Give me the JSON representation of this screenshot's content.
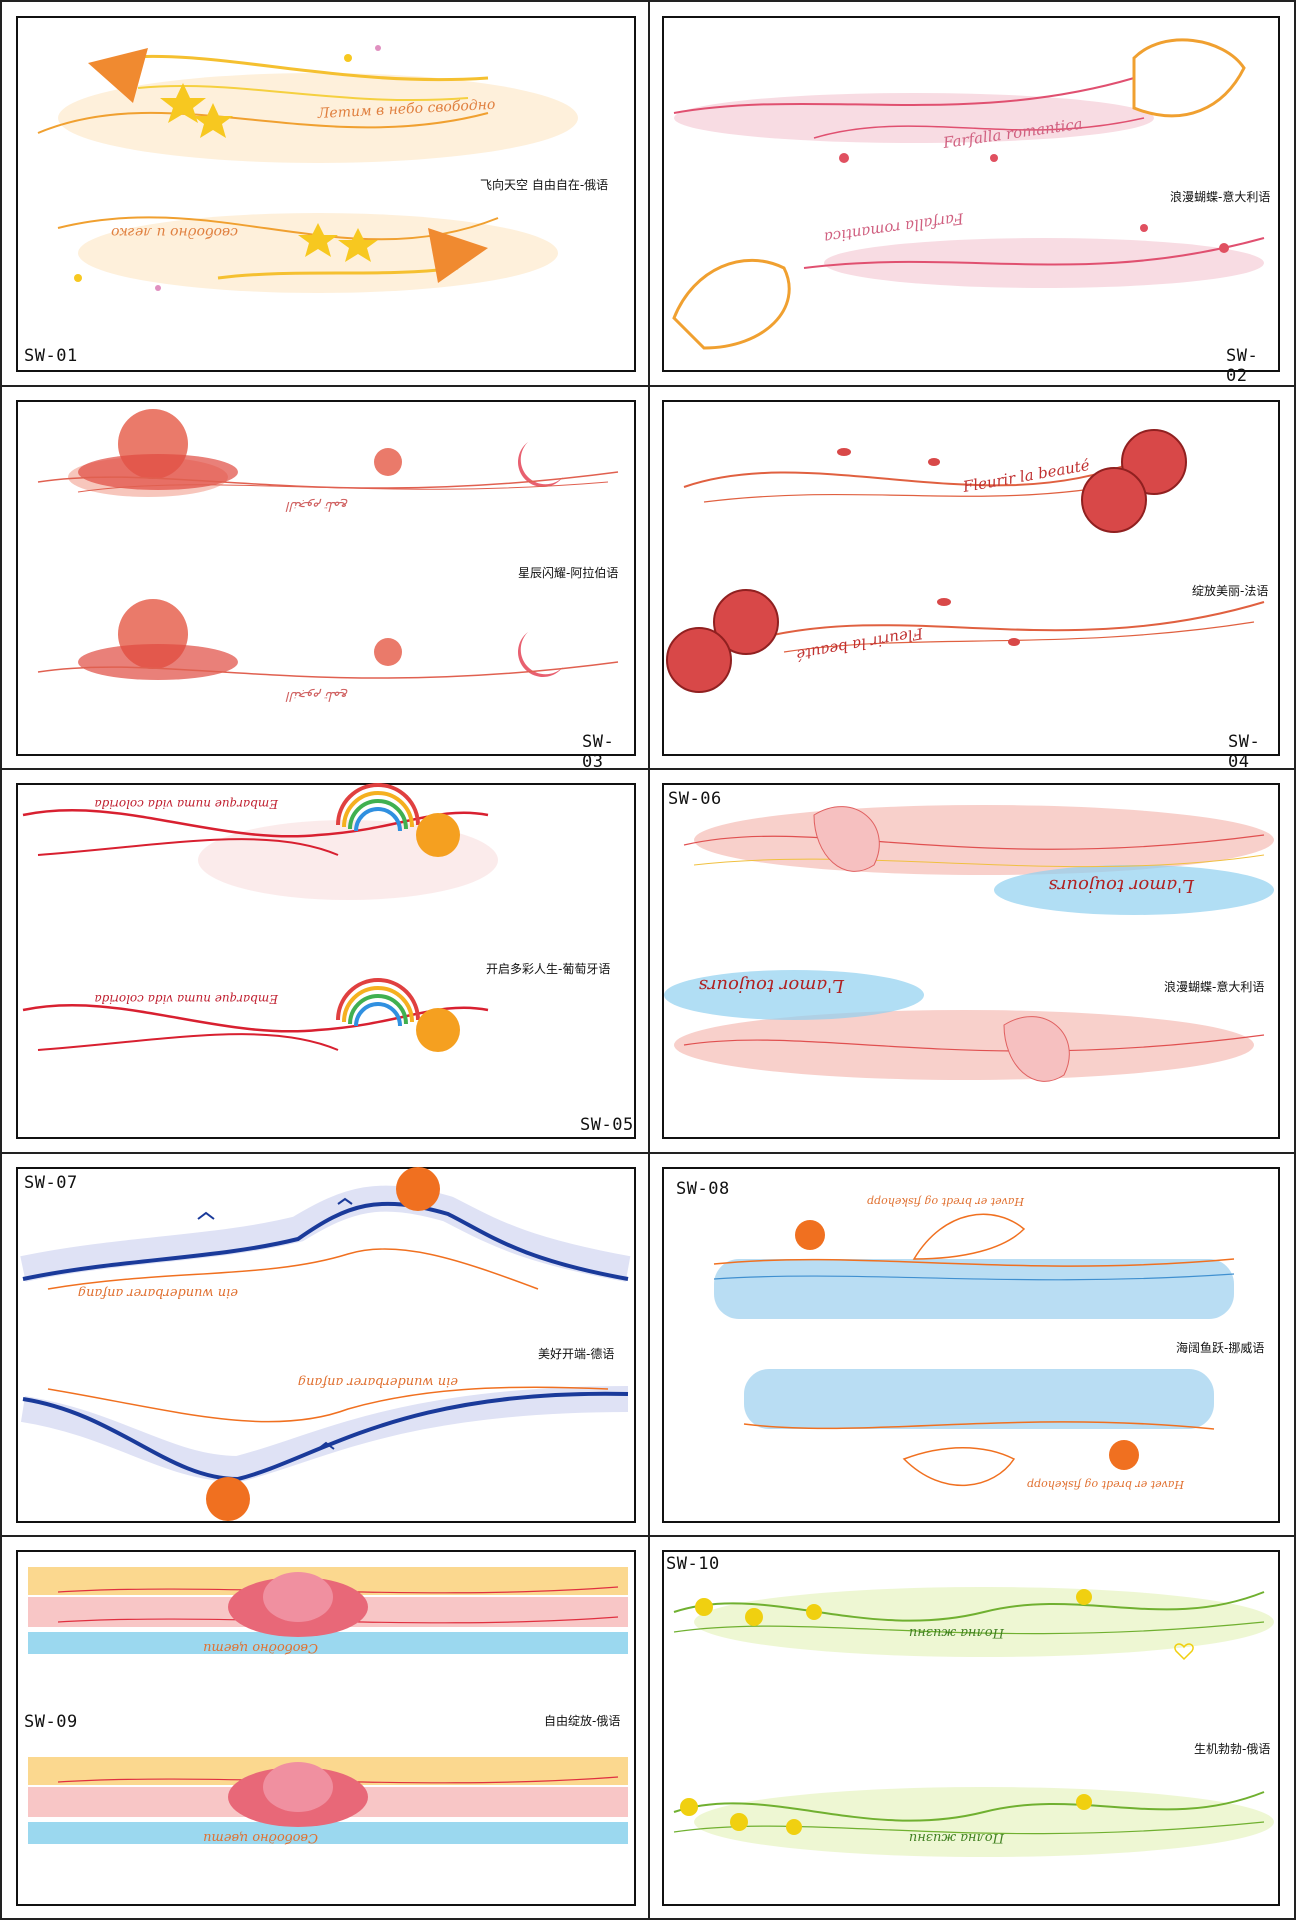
{
  "panels": [
    {
      "code": "SW-01",
      "caption": "飞向天空 自由自在-俄语",
      "script_top": "Летим в небо свободно",
      "script_bottom": "свободно и легко"
    },
    {
      "code": "SW-02",
      "caption": "浪漫蝴蝶-意大利语",
      "script_top": "Farfalla romantica",
      "script_bottom": "Farfalla romantica"
    },
    {
      "code": "SW-03",
      "caption": "星辰闪耀-阿拉伯语",
      "script_top": "النجوم تلمع",
      "script_bottom": "النجوم تلمع"
    },
    {
      "code": "SW-04",
      "caption": "绽放美丽-法语",
      "script_top": "Fleurir la beauté",
      "script_bottom": "Fleurir la beauté"
    },
    {
      "code": "SW-05",
      "caption": "开启多彩人生-葡萄牙语",
      "script_top": "Embarque numa vida colorida",
      "script_bottom": "Embarque numa vida colorida"
    },
    {
      "code": "SW-06",
      "caption": "浪漫蝴蝶-意大利语",
      "script_top": "L'amor toujours",
      "script_bottom": "L'amor toujours"
    },
    {
      "code": "SW-07",
      "caption": "美好开端-德语",
      "script_top": "ein wunderbarer anfang",
      "script_bottom": "ein wunderbarer anfang"
    },
    {
      "code": "SW-08",
      "caption": "海阔鱼跃-挪威语",
      "script_top": "Havet er bredt og fiskehopp",
      "script_bottom": "Havet er bredt og fiskehopp"
    },
    {
      "code": "SW-09",
      "caption": "自由绽放-俄语",
      "script_top": "Свободно цвети",
      "script_bottom": "Свободно цвети"
    },
    {
      "code": "SW-10",
      "caption": "生机勃勃-俄语",
      "script_top": "Полна жизни",
      "script_bottom": "Полна жизни"
    }
  ],
  "colors": {
    "frame": "#111111",
    "sw01": "#f0a030",
    "sw02": "#e05070",
    "sw03": "#e06050",
    "sw04": "#d84040",
    "sw05": "#d82030",
    "sw06": "#e05050",
    "sw07": "#1a3a9a",
    "sw08": "#4090d0",
    "sw09": "#e05060",
    "sw10": "#70b030"
  }
}
